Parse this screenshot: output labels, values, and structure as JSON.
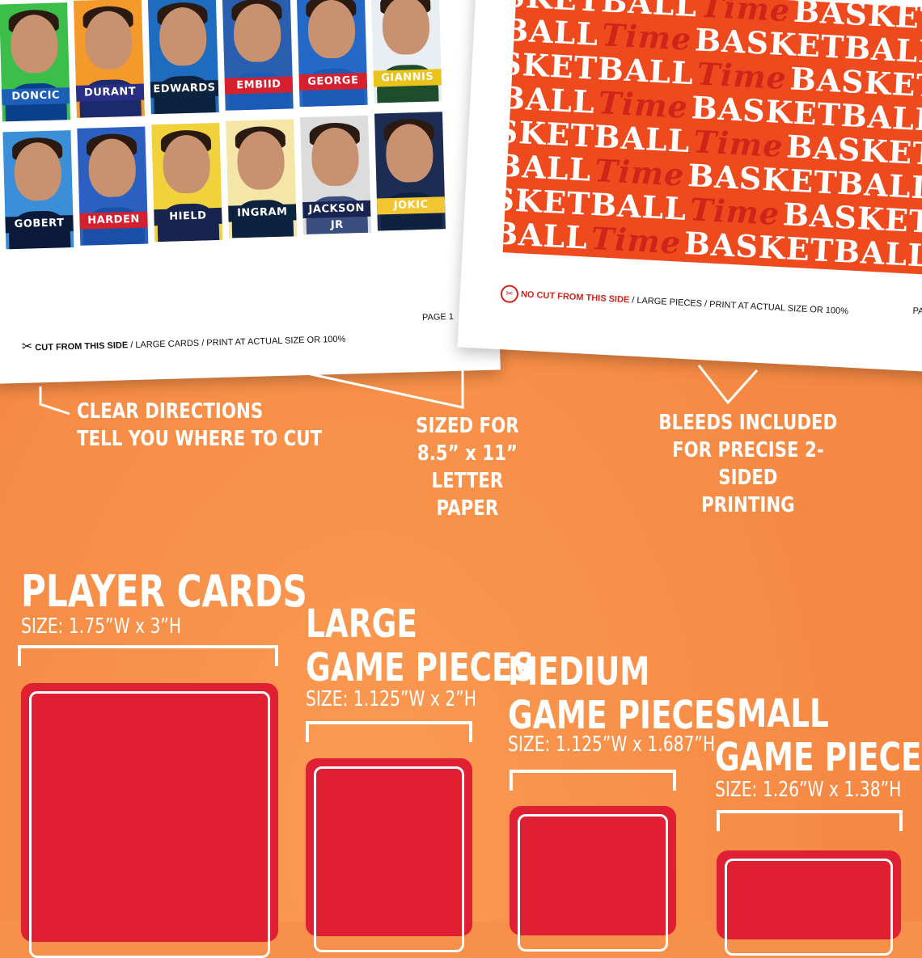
{
  "colors": {
    "background": "#f7904a",
    "piece_red": "#e01f33",
    "pattern_orange": "#ee4a1e"
  },
  "left_sheet": {
    "row1": [
      {
        "name": "DONCIC",
        "bg": "#3bbf4a",
        "shirt": "#0a3f8c",
        "band": "#1d5fb8"
      },
      {
        "name": "DURANT",
        "bg": "#f39a2a",
        "shirt": "#1b2a6b",
        "band": "#2a2f86"
      },
      {
        "name": "EDWARDS",
        "bg": "#1e6cc0",
        "shirt": "#0c2340",
        "band": "#0c2340"
      },
      {
        "name": "EMBIID",
        "bg": "#2a5fb0",
        "shirt": "#1a5bb8",
        "band": "#d52030"
      },
      {
        "name": "GEORGE",
        "bg": "#2468c8",
        "shirt": "#1a5bb8",
        "band": "#d52030"
      },
      {
        "name": "GIANNIS",
        "bg": "#e8eef2",
        "shirt": "#1e4d2b",
        "band": "#e9c21b"
      }
    ],
    "row2": [
      {
        "name": "GOBERT",
        "bg": "#3a8fd8",
        "shirt": "#0c1a3a",
        "band": "#0c1a3a"
      },
      {
        "name": "HARDEN",
        "bg": "#2b5fc0",
        "shirt": "#1a4fa8",
        "band": "#d52030"
      },
      {
        "name": "HIELD",
        "bg": "#f2d23c",
        "shirt": "#16244f",
        "band": "#16244f"
      },
      {
        "name": "INGRAM",
        "bg": "#f5e6a8",
        "shirt": "#0c2340",
        "band": "#0c2340"
      },
      {
        "name": "JACKSON JR",
        "bg": "#dcdcdc",
        "shirt": "#3a4f80",
        "band": "#16244f"
      },
      {
        "name": "JOKIC",
        "bg": "#1c2c52",
        "shirt": "#0e2240",
        "band": "#f2c531"
      }
    ],
    "footer_bold": "CUT FROM THIS SIDE",
    "footer_rest": " / LARGE CARDS / PRINT AT ACTUAL SIZE OR 100%",
    "page": "PAGE 1"
  },
  "right_sheet": {
    "word1": "BASKETBALL",
    "word2": "Time",
    "footer_bold": "NO CUT FROM THIS SIDE",
    "footer_rest": " / LARGE PIECES / PRINT AT ACTUAL SIZE OR 100%",
    "page": "PA"
  },
  "callouts": {
    "directions": [
      "CLEAR DIRECTIONS",
      "TELL YOU WHERE TO CUT"
    ],
    "sized": [
      "SIZED FOR",
      "8.5” x 11”",
      "LETTER PAPER"
    ],
    "bleeds": [
      "BLEEDS INCLUDED",
      "FOR PRECISE 2-SIDED",
      "PRINTING"
    ]
  },
  "sections": {
    "player_cards": {
      "title": "PLAYER CARDS",
      "size": "SIZE: 1.75”W x 3”H"
    },
    "large": {
      "title1": "LARGE",
      "title2": "GAME PIECES",
      "size": "SIZE: 1.125”W x 2”H"
    },
    "medium": {
      "title1": "MEDIUM",
      "title2": "GAME PIECES",
      "size": "SIZE: 1.125”W x 1.687”H"
    },
    "small": {
      "title1": "SMALL",
      "title2": "GAME PIECES",
      "size": "SIZE: 1.26”W x 1.38”H"
    }
  }
}
